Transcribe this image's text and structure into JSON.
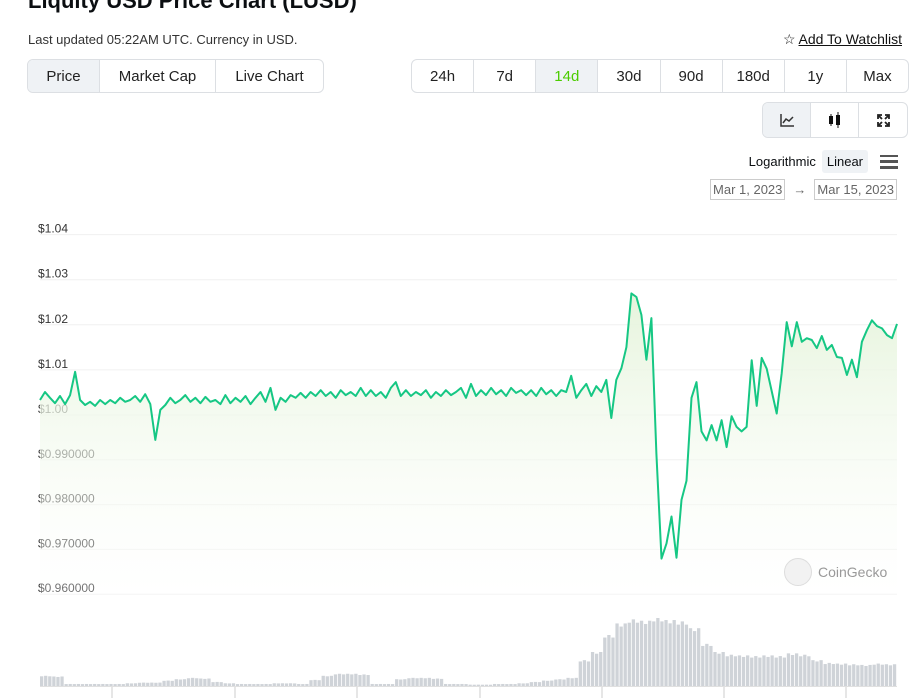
{
  "header": {
    "title": "Liquity USD Price Chart (LUSD)",
    "updated": "Last updated 05:22AM UTC. Currency in USD.",
    "watchlist": "Add To Watchlist",
    "watchlist_icon": "star-outline-icon"
  },
  "tabs": [
    {
      "label": "Price",
      "active": true
    },
    {
      "label": "Market Cap"
    },
    {
      "label": "Live Chart"
    }
  ],
  "ranges": [
    {
      "label": "24h"
    },
    {
      "label": "7d"
    },
    {
      "label": "14d",
      "active": true
    },
    {
      "label": "30d"
    },
    {
      "label": "90d"
    },
    {
      "label": "180d"
    },
    {
      "label": "1y"
    },
    {
      "label": "Max"
    }
  ],
  "chart_types": [
    {
      "icon": "line-chart-icon",
      "active": true
    },
    {
      "icon": "candlestick-icon"
    },
    {
      "icon": "fullscreen-icon"
    }
  ],
  "scale": {
    "log": "Logarithmic",
    "linear": "Linear",
    "active": "Linear",
    "menu_icon": "hamburger-menu-icon"
  },
  "date_range": {
    "from": "Mar 1, 2023",
    "arrow": "→",
    "to": "Mar 15, 2023"
  },
  "watermark": "CoinGecko",
  "colors": {
    "line": "#16c784",
    "fill": "#e6f4dc",
    "volume": "#cfd3d8",
    "accent": "#4bcc00"
  },
  "chart_data": {
    "type": "area",
    "x_start": "Mar 1, 2023",
    "x_end": "Mar 15, 2023",
    "ylim": [
      0.955,
      1.04
    ],
    "y_ticks": [
      {
        "v": 1.04,
        "label": "$1.04"
      },
      {
        "v": 1.03,
        "label": "$1.03"
      },
      {
        "v": 1.02,
        "label": "$1.02"
      },
      {
        "v": 1.01,
        "label": "$1.01"
      },
      {
        "v": 1.0,
        "label": "$1.00"
      },
      {
        "v": 0.99,
        "label": "$0.990000"
      },
      {
        "v": 0.98,
        "label": "$0.980000"
      },
      {
        "v": 0.97,
        "label": "$0.970000"
      },
      {
        "v": 0.96,
        "label": "$0.960000"
      }
    ],
    "grid": true,
    "values": [
      1.002,
      1.0038,
      1.0025,
      1.0013,
      1.0029,
      1.0011,
      1.0031,
      1.0083,
      1.002,
      1.0009,
      1.0016,
      1.0007,
      1.002,
      1.0011,
      1.002,
      1.0013,
      1.0025,
      1.0016,
      1.002,
      1.0029,
      1.0016,
      1.0033,
      1.0011,
      0.9931,
      0.9998,
      1.0009,
      1.0025,
      1.0013,
      1.002,
      1.0031,
      1.0016,
      1.0025,
      1.0013,
      1.0027,
      1.0016,
      1.002,
      1.0011,
      1.0031,
      1.0013,
      1.0025,
      1.0016,
      1.0029,
      1.0011,
      1.0025,
      1.0038,
      1.0016,
      1.0047,
      0.9998,
      1.0025,
      1.0016,
      1.0031,
      1.0025,
      1.0036,
      1.0025,
      1.0038,
      1.0029,
      1.0042,
      1.0029,
      1.0038,
      1.0025,
      1.0042,
      1.0031,
      1.0038,
      1.0029,
      1.0047,
      1.0029,
      1.0042,
      1.0029,
      1.0038,
      1.0025,
      1.0047,
      1.006,
      1.0029,
      1.0042,
      1.0029,
      1.0038,
      1.0031,
      1.0042,
      1.0025,
      1.0038,
      1.0029,
      1.0042,
      1.0031,
      1.0038,
      1.0047,
      1.0025,
      1.0056,
      1.0029,
      1.0042,
      1.0031,
      1.0047,
      1.0033,
      1.0042,
      1.0029,
      1.0047,
      1.0036,
      1.0042,
      1.0031,
      1.0042,
      1.0029,
      1.0047,
      1.0033,
      1.0042,
      1.0029,
      1.0042,
      1.0038,
      1.0074,
      1.0025,
      1.0042,
      1.0056,
      1.0029,
      1.0051,
      1.0038,
      1.0065,
      0.998,
      1.0065,
      1.0091,
      1.0138,
      1.0258,
      1.025,
      1.021,
      1.011,
      1.0203,
      0.99,
      0.9666,
      0.97,
      0.976,
      0.9668,
      0.9797,
      0.984,
      1.0025,
      1.006,
      0.995,
      0.993,
      0.9964,
      0.993,
      0.9975,
      0.9915,
      0.9984,
      0.996,
      0.995,
      0.996,
      1.0109,
      1.0007,
      1.0114,
      1.009,
      1.004,
      0.999,
      1.008,
      1.0194,
      1.014,
      1.0194,
      1.015,
      1.0158,
      1.0154,
      1.0136,
      1.0163,
      1.0132,
      1.0143,
      1.0116,
      1.0114,
      1.0076,
      1.011,
      1.0071,
      1.015,
      1.0176,
      1.0198,
      1.0185,
      1.018,
      1.0165,
      1.0158,
      1.019
    ],
    "volume_relative": [
      15,
      14,
      3,
      3,
      3,
      3,
      3,
      4,
      5,
      5,
      8,
      10,
      12,
      11,
      6,
      4,
      3,
      3,
      3,
      4,
      4,
      3,
      9,
      15,
      18,
      18,
      17,
      3,
      3,
      10,
      12,
      12,
      11,
      3,
      3,
      2,
      2,
      3,
      3,
      4,
      6,
      8,
      10,
      12,
      38,
      50,
      75,
      92,
      98,
      96,
      100,
      97,
      95,
      85,
      62,
      50,
      46,
      45,
      44,
      45,
      44,
      48,
      46,
      38,
      34,
      33,
      32,
      31,
      33,
      32
    ]
  }
}
